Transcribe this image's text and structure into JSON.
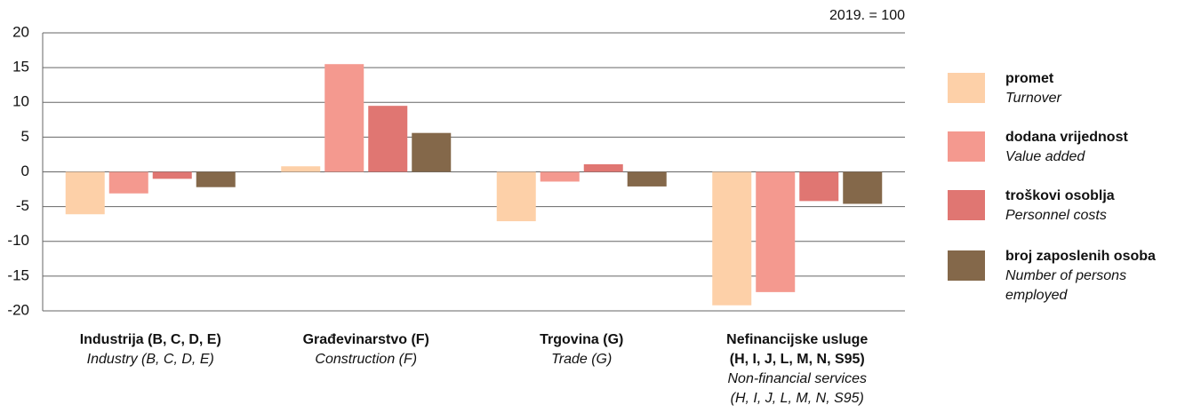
{
  "chart_data": {
    "type": "bar",
    "annotation": "2019. = 100",
    "categories": [
      [
        "Industrija (B, C, D, E)"
      ],
      [
        "Građevinarstvo (F)"
      ],
      [
        "Trgovina (G)"
      ],
      [
        "Nefinancijske usluge",
        "(H, I, J, L, M, N, S95)"
      ]
    ],
    "categories_en": [
      [
        "Industry (B, C, D, E)"
      ],
      [
        "Construction (F)"
      ],
      [
        "Trade (G)"
      ],
      [
        "Non-financial services",
        "(H, I, J, L, M, N, S95)"
      ]
    ],
    "series": [
      {
        "name": "promet",
        "name_en": "Turnover",
        "color": "#fdd0a8",
        "values": [
          -6.1,
          0.8,
          -7.1,
          -19.2
        ]
      },
      {
        "name": "dodana vrijednost",
        "name_en": "Value added",
        "color": "#f4998f",
        "values": [
          -3.1,
          15.5,
          -1.4,
          -17.3
        ]
      },
      {
        "name": "troškovi osoblja",
        "name_en": "Personnel costs",
        "color": "#e07672",
        "values": [
          -1.0,
          9.5,
          1.1,
          -4.2
        ]
      },
      {
        "name": "broj zaposlenih osoba",
        "name_en": "Number of persons employed",
        "color": "#84684a",
        "values": [
          -2.2,
          5.6,
          -2.1,
          -4.6
        ]
      }
    ],
    "ylim": [
      -20,
      20
    ],
    "yticks": [
      -20,
      -15,
      -10,
      -5,
      0,
      5,
      10,
      15,
      20
    ],
    "grid": true,
    "legend": "right"
  }
}
